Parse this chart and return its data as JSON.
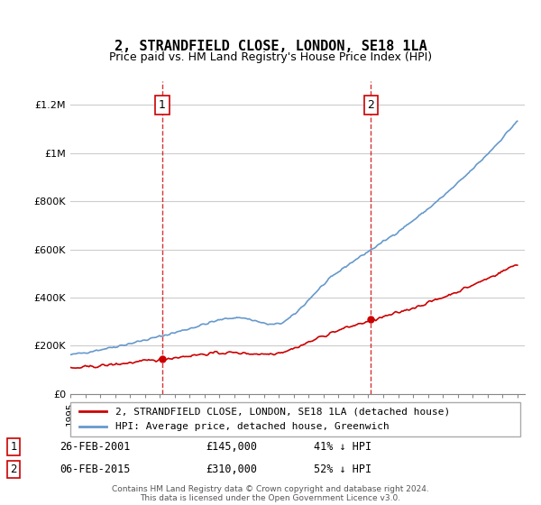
{
  "title": "2, STRANDFIELD CLOSE, LONDON, SE18 1LA",
  "subtitle": "Price paid vs. HM Land Registry's House Price Index (HPI)",
  "red_label": "2, STRANDFIELD CLOSE, LONDON, SE18 1LA (detached house)",
  "blue_label": "HPI: Average price, detached house, Greenwich",
  "footer": "Contains HM Land Registry data © Crown copyright and database right 2024.\nThis data is licensed under the Open Government Licence v3.0.",
  "sale1_date": "26-FEB-2001",
  "sale1_price": "£145,000",
  "sale1_hpi": "41% ↓ HPI",
  "sale2_date": "06-FEB-2015",
  "sale2_price": "£310,000",
  "sale2_hpi": "52% ↓ HPI",
  "ylim": [
    0,
    1300000
  ],
  "xlim_start": 1995.0,
  "xlim_end": 2025.5,
  "red_color": "#cc0000",
  "blue_color": "#6699cc",
  "vline_color": "#cc0000",
  "grid_color": "#cccccc",
  "bg_color": "#ffffff"
}
